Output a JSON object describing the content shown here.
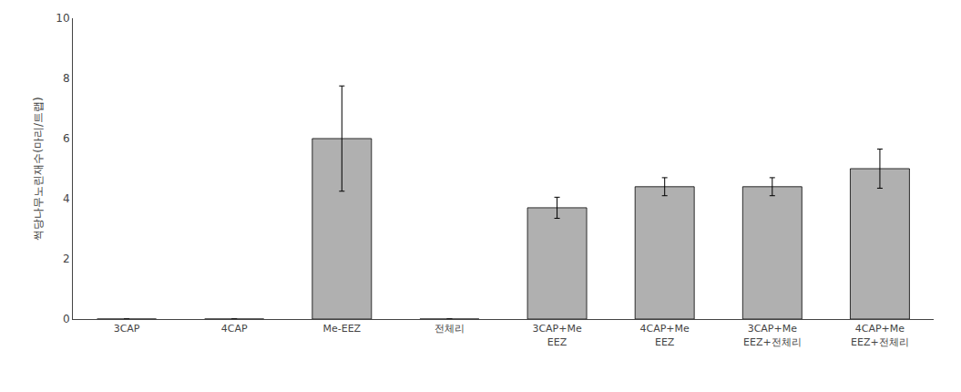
{
  "chart_data": {
    "type": "bar",
    "categories": [
      "3CAP",
      "4CAP",
      "Me-EEZ",
      "전체리",
      "3CAP+Me\nEEZ",
      "4CAP+Me\nEEZ",
      "3CAP+Me\nEEZ+전체리",
      "4CAP+Me\nEEZ+전체리"
    ],
    "values": [
      0.0,
      0.0,
      6.0,
      0.0,
      3.7,
      4.4,
      4.4,
      5.0
    ],
    "errors": [
      0.0,
      0.0,
      1.75,
      0.0,
      0.35,
      0.3,
      0.3,
      0.65
    ],
    "color": "#b0b0b0",
    "ylabel": "썩당나무노린재수(마리/트랩)",
    "ylim": [
      0,
      10
    ],
    "yticks": [
      0,
      2,
      4,
      6,
      8,
      10
    ],
    "grid": false
  }
}
